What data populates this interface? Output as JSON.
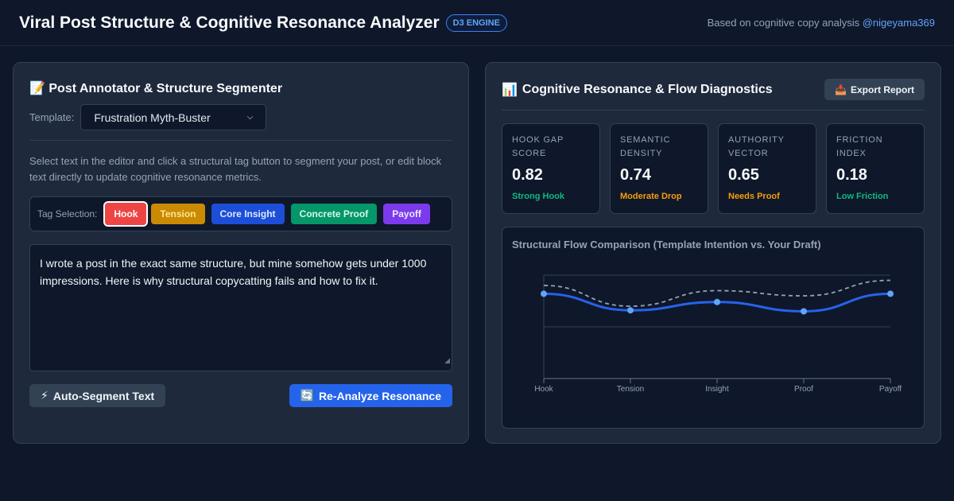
{
  "header": {
    "title": "Viral Post Structure & Cognitive Resonance Analyzer",
    "badge": "D3 ENGINE",
    "attribution_prefix": "Based on cognitive copy analysis ",
    "attribution_handle": "@nigeyama369"
  },
  "left_panel": {
    "title_icon": "📝",
    "title": "Post Annotator & Structure Segmenter",
    "template_label": "Template:",
    "template_value": "Frustration Myth-Buster",
    "instructions": "Select text in the editor and click a structural tag button to segment your post, or edit block text directly to update cognitive resonance metrics.",
    "tag_label": "Tag Selection:",
    "tags": [
      {
        "label": "Hook",
        "color": "#ef4444"
      },
      {
        "label": "Tension",
        "color": "#ca8a04"
      },
      {
        "label": "Core Insight",
        "color": "#1d4ed8"
      },
      {
        "label": "Concrete Proof",
        "color": "#059669"
      },
      {
        "label": "Payoff",
        "color": "#7c3aed"
      }
    ],
    "editor_text": "I wrote a post in the exact same structure, but mine somehow gets under 1000 impressions. Here is why structural copycatting fails and how to fix it.",
    "auto_segment_icon": "⚡",
    "auto_segment_label": "Auto-Segment Text",
    "reanalyze_icon": "🔄",
    "reanalyze_label": "Re-Analyze Resonance"
  },
  "right_panel": {
    "title_icon": "📊",
    "title": "Cognitive Resonance & Flow Diagnostics",
    "export_icon": "📥",
    "export_label": "Export Report",
    "metrics": [
      {
        "label": "HOOK GAP SCORE",
        "value": "0.82",
        "status": "Strong Hook",
        "status_color": "#10b981"
      },
      {
        "label": "SEMANTIC DENSITY",
        "value": "0.74",
        "status": "Moderate Drop",
        "status_color": "#f59e0b"
      },
      {
        "label": "AUTHORITY VECTOR",
        "value": "0.65",
        "status": "Needs Proof",
        "status_color": "#f59e0b"
      },
      {
        "label": "FRICTION INDEX",
        "value": "0.18",
        "status": "Low Friction",
        "status_color": "#10b981"
      }
    ]
  },
  "chart_data": {
    "type": "line",
    "title": "Structural Flow Comparison (Template Intention vs. Your Draft)",
    "categories": [
      "Hook",
      "Tension",
      "Insight",
      "Proof",
      "Payoff"
    ],
    "ylim": [
      0,
      1
    ],
    "grid": true,
    "series": [
      {
        "style": "dashed",
        "color": "#94a3b8",
        "values": [
          0.9,
          0.7,
          0.85,
          0.8,
          0.95
        ]
      },
      {
        "style": "solid",
        "color": "#2563eb",
        "values": [
          0.82,
          0.66,
          0.74,
          0.65,
          0.82
        ]
      }
    ]
  }
}
